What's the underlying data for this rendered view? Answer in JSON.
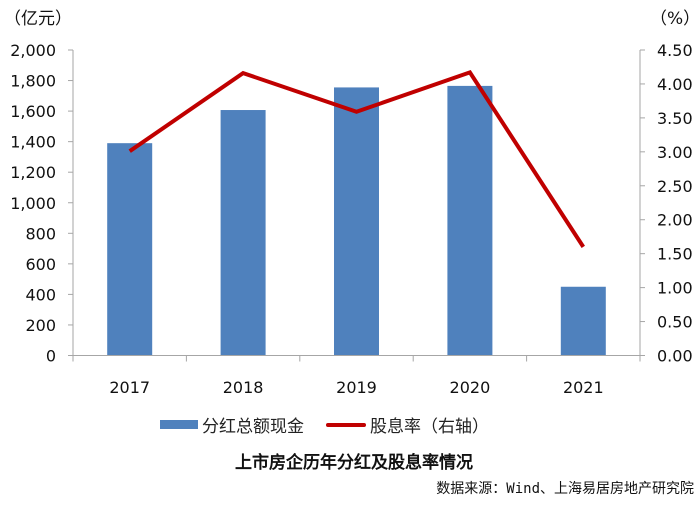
{
  "chart_data": {
    "type": "bar+line",
    "title": "上市房企历年分红及股息率情况",
    "source": "数据来源：Wind、上海易居房地产研究院",
    "categories": [
      "2017",
      "2018",
      "2019",
      "2020",
      "2021"
    ],
    "series": [
      {
        "name": "分红总额现金",
        "type": "bar",
        "axis": "left",
        "color": "#4F81BD",
        "values": [
          1390,
          1607,
          1755,
          1765,
          450
        ]
      },
      {
        "name": "股息率（右轴）",
        "type": "line",
        "axis": "right",
        "color": "#C00000",
        "values": [
          3.01,
          4.16,
          3.59,
          4.17,
          1.6
        ]
      }
    ],
    "left_axis": {
      "unit": "（亿元）",
      "ylim": [
        0,
        2000
      ],
      "ticks": [
        "0",
        "200",
        "400",
        "600",
        "800",
        "1,000",
        "1,200",
        "1,400",
        "1,600",
        "1,800",
        "2,000"
      ]
    },
    "right_axis": {
      "unit": "（%）",
      "ylim": [
        0,
        4.5
      ],
      "ticks": [
        "0.00",
        "0.50",
        "1.00",
        "1.50",
        "2.00",
        "2.50",
        "3.00",
        "3.50",
        "4.00",
        "4.50"
      ]
    },
    "grid": false,
    "legend_position": "bottom"
  },
  "legend": {
    "bar_label": "分红总额现金",
    "line_label": "股息率（右轴）"
  },
  "title": "上市房企历年分红及股息率情况",
  "source": "数据来源：Wind、上海易居房地产研究院"
}
